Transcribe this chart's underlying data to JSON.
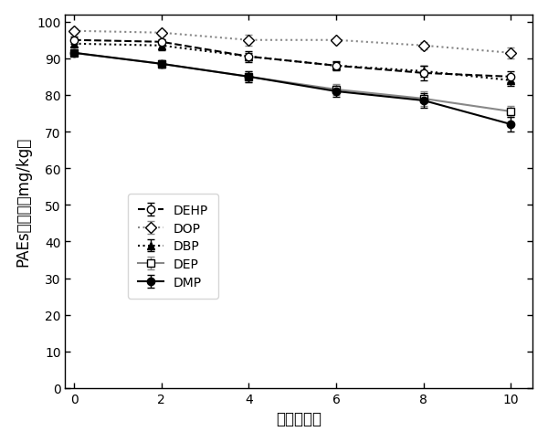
{
  "x": [
    0,
    2,
    4,
    6,
    8,
    10
  ],
  "series": {
    "DEHP": {
      "y": [
        95.0,
        94.5,
        90.5,
        88.0,
        86.0,
        85.0
      ],
      "yerr": [
        1.0,
        0.8,
        1.5,
        1.2,
        2.0,
        1.5
      ],
      "linestyle": "--",
      "marker": "o",
      "color": "#000000",
      "markerfacecolor": "white",
      "markersize": 6
    },
    "DOP": {
      "y": [
        97.5,
        97.0,
        95.0,
        95.0,
        93.5,
        91.5
      ],
      "yerr": [
        0.8,
        0.8,
        1.5,
        0.5,
        1.0,
        1.5
      ],
      "linestyle": ":",
      "marker": "D",
      "color": "#888888",
      "markerfacecolor": "white",
      "markersize": 6
    },
    "DBP": {
      "y": [
        94.0,
        93.5,
        90.5,
        88.0,
        86.5,
        84.0
      ],
      "yerr": [
        0.8,
        1.2,
        1.0,
        1.0,
        1.5,
        1.5
      ],
      "linestyle": ":",
      "marker": "^",
      "color": "#000000",
      "markerfacecolor": "black",
      "markersize": 6
    },
    "DEP": {
      "y": [
        91.5,
        88.5,
        85.0,
        81.5,
        79.0,
        75.5
      ],
      "yerr": [
        0.8,
        1.0,
        1.5,
        1.5,
        2.0,
        1.5
      ],
      "linestyle": "-",
      "marker": "s",
      "color": "#888888",
      "markerfacecolor": "white",
      "markersize": 6
    },
    "DMP": {
      "y": [
        91.5,
        88.5,
        85.0,
        81.0,
        78.5,
        72.0
      ],
      "yerr": [
        0.8,
        1.0,
        1.5,
        1.5,
        2.0,
        2.0
      ],
      "linestyle": "-",
      "marker": "o",
      "color": "#000000",
      "markerfacecolor": "black",
      "markersize": 6
    }
  },
  "xlabel": "时间（天）",
  "ylabel": "PAEs残留量（mg/kg）",
  "xlim": [
    -0.2,
    10.5
  ],
  "ylim": [
    0,
    102
  ],
  "xticks": [
    0,
    2,
    4,
    6,
    8,
    10
  ],
  "yticks": [
    0,
    10,
    20,
    30,
    40,
    50,
    60,
    70,
    80,
    90,
    100
  ],
  "legend_order": [
    "DEHP",
    "DOP",
    "DBP",
    "DEP",
    "DMP"
  ],
  "plot_order": [
    "DEP",
    "DMP",
    "DBP",
    "DEHP",
    "DOP"
  ],
  "background_color": "#ffffff",
  "linewidth": 1.5,
  "capsize": 3
}
